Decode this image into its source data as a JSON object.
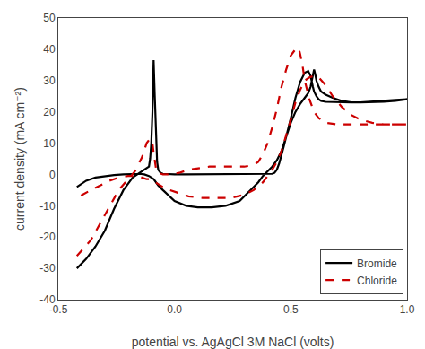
{
  "chart_data": {
    "type": "line",
    "xlabel": "potential vs. AgAgCl 3M NaCl (volts)",
    "ylabel": "current density (mA cm⁻²)",
    "xlim": [
      -0.5,
      1.0
    ],
    "ylim": [
      -40,
      50
    ],
    "xticks": [
      -0.5,
      {
        "value": 0.0,
        "label": "0.0"
      },
      0.5,
      {
        "value": 1.0,
        "label": "1.0"
      }
    ],
    "yticks": [
      -40,
      -30,
      -20,
      -10,
      0,
      10,
      20,
      30,
      40,
      50
    ],
    "grid": false,
    "legend": "lower right",
    "series": [
      {
        "name": "Bromide",
        "color": "#000000",
        "line_style": "solid",
        "x": [
          -0.42,
          -0.38,
          -0.34,
          -0.3,
          -0.26,
          -0.22,
          -0.18,
          -0.15,
          -0.13,
          -0.11,
          -0.105,
          -0.1,
          -0.095,
          -0.09,
          -0.085,
          -0.08,
          -0.075,
          -0.07,
          -0.06,
          -0.05,
          -0.03,
          0.0,
          0.05,
          0.1,
          0.15,
          0.2,
          0.25,
          0.3,
          0.35,
          0.38,
          0.4,
          0.42,
          0.43,
          0.44,
          0.45,
          0.46,
          0.47,
          0.48,
          0.5,
          0.52,
          0.54,
          0.56,
          0.575,
          0.585,
          0.59,
          0.595,
          0.6,
          0.605,
          0.61,
          0.62,
          0.63,
          0.65,
          0.68,
          0.72,
          0.76,
          0.8,
          0.85,
          0.9,
          0.95,
          1.0,
          1.0,
          0.95,
          0.9,
          0.85,
          0.8,
          0.76,
          0.72,
          0.68,
          0.65,
          0.63,
          0.62,
          0.61,
          0.6,
          0.595,
          0.59,
          0.585,
          0.575,
          0.56,
          0.54,
          0.52,
          0.5,
          0.48,
          0.46,
          0.44,
          0.42,
          0.4,
          0.38,
          0.36,
          0.32,
          0.28,
          0.22,
          0.16,
          0.1,
          0.05,
          0.0,
          -0.03,
          -0.05,
          -0.07,
          -0.09,
          -0.11,
          -0.13,
          -0.15,
          -0.18,
          -0.22,
          -0.26,
          -0.3,
          -0.34,
          -0.38,
          -0.42
        ],
        "values": [
          -30.0,
          -27.0,
          -23.0,
          -18.0,
          -11.0,
          -5.0,
          -1.0,
          0.5,
          1.5,
          2.5,
          5.0,
          10.0,
          20.0,
          36.5,
          25.0,
          12.0,
          4.0,
          1.5,
          0.5,
          0.2,
          0.1,
          0.0,
          0.0,
          0.0,
          0.0,
          0.0,
          0.0,
          0.0,
          0.0,
          0.0,
          0.0,
          0.2,
          0.5,
          1.5,
          3.5,
          6.0,
          9.0,
          12.0,
          16.5,
          20.0,
          22.5,
          24.5,
          26.0,
          28.0,
          30.0,
          32.5,
          33.5,
          32.0,
          30.0,
          28.0,
          26.5,
          25.5,
          24.5,
          23.5,
          23.0,
          23.0,
          23.0,
          23.2,
          23.5,
          24.0,
          24.0,
          23.8,
          23.5,
          23.2,
          23.0,
          23.0,
          23.0,
          23.0,
          23.2,
          23.5,
          24.0,
          25.0,
          26.5,
          28.0,
          29.5,
          31.5,
          33.0,
          32.5,
          29.5,
          24.5,
          18.0,
          12.0,
          7.5,
          4.5,
          2.5,
          1.0,
          -0.5,
          -2.5,
          -5.5,
          -8.5,
          -10.0,
          -10.5,
          -10.5,
          -10.0,
          -8.5,
          -6.5,
          -5.0,
          -3.5,
          -1.5,
          -0.5,
          0.0,
          0.2,
          0.2,
          0.0,
          -0.2,
          -0.5,
          -1.0,
          -2.0,
          -4.0
        ]
      },
      {
        "name": "Chloride",
        "color": "#cc0000",
        "line_style": "dashed",
        "x": [
          -0.42,
          -0.36,
          -0.3,
          -0.24,
          -0.2,
          -0.17,
          -0.14,
          -0.12,
          -0.105,
          -0.095,
          -0.09,
          -0.085,
          -0.08,
          -0.07,
          -0.05,
          -0.02,
          0.02,
          0.06,
          0.1,
          0.15,
          0.2,
          0.25,
          0.3,
          0.34,
          0.36,
          0.38,
          0.4,
          0.42,
          0.44,
          0.46,
          0.48,
          0.5,
          0.52,
          0.53,
          0.535,
          0.54,
          0.545,
          0.55,
          0.56,
          0.58,
          0.6,
          0.62,
          0.65,
          0.7,
          0.75,
          0.8,
          0.85,
          0.9,
          0.95,
          1.0,
          1.0,
          0.95,
          0.9,
          0.85,
          0.8,
          0.76,
          0.72,
          0.68,
          0.65,
          0.62,
          0.6,
          0.58,
          0.57,
          0.56,
          0.54,
          0.52,
          0.5,
          0.48,
          0.46,
          0.44,
          0.42,
          0.4,
          0.38,
          0.34,
          0.3,
          0.24,
          0.18,
          0.12,
          0.06,
          0.02,
          -0.02,
          -0.05,
          -0.07,
          -0.09,
          -0.105,
          -0.12,
          -0.14,
          -0.17,
          -0.2,
          -0.24,
          -0.28,
          -0.32,
          -0.36,
          -0.42
        ],
        "values": [
          -26.0,
          -21.0,
          -13.0,
          -5.0,
          -1.5,
          1.0,
          5.5,
          10.0,
          11.5,
          10.0,
          7.0,
          4.0,
          2.0,
          0.5,
          0.0,
          0.0,
          0.5,
          1.5,
          2.0,
          2.5,
          2.5,
          2.5,
          2.5,
          3.0,
          4.0,
          6.5,
          10.0,
          15.0,
          21.0,
          28.0,
          33.5,
          38.0,
          40.0,
          40.5,
          40.0,
          38.5,
          37.0,
          35.0,
          30.0,
          24.0,
          20.0,
          18.0,
          16.5,
          16.0,
          16.0,
          16.0,
          16.0,
          16.0,
          16.0,
          16.0,
          16.0,
          16.0,
          16.0,
          16.5,
          17.5,
          19.0,
          21.5,
          25.0,
          28.5,
          31.0,
          31.5,
          31.0,
          30.5,
          30.0,
          27.0,
          23.0,
          17.5,
          12.5,
          7.5,
          4.0,
          1.5,
          -0.5,
          -2.5,
          -5.0,
          -6.5,
          -7.5,
          -7.5,
          -7.5,
          -7.0,
          -6.0,
          -5.0,
          -4.0,
          -3.0,
          -2.0,
          -1.5,
          -1.5,
          -1.0,
          -0.5,
          -0.5,
          -1.0,
          -2.0,
          -3.5,
          -5.0,
          -7.5
        ]
      }
    ]
  }
}
